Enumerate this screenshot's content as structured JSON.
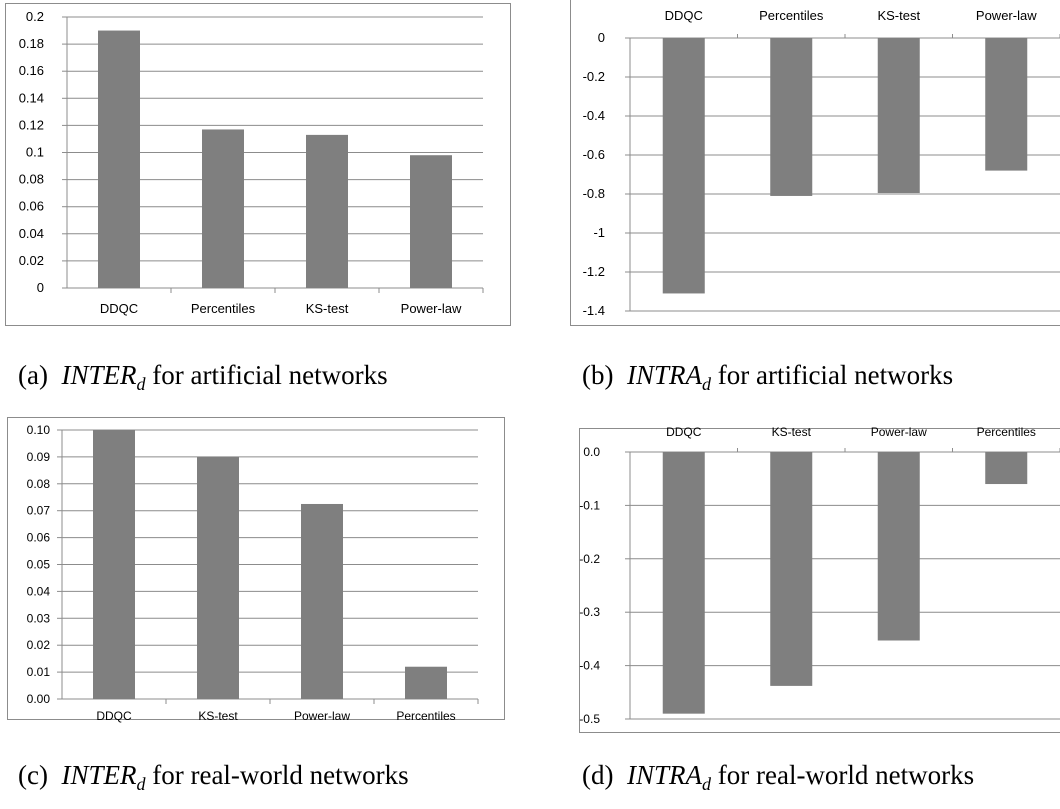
{
  "colors": {
    "bar": "#7f7f7f",
    "grid": "#8c8c8c",
    "axis": "#8c8c8c",
    "text": "#000000"
  },
  "panels": [
    {
      "caption": {
        "label": "(a)",
        "symbol": "INTER",
        "subscript": "d",
        "text": "for artificial networks"
      },
      "chart_data": {
        "type": "bar",
        "categories": [
          "DDQC",
          "Percentiles",
          "KS-test",
          "Power-law"
        ],
        "values": [
          0.19,
          0.117,
          0.113,
          0.098
        ],
        "yticks": [
          "0",
          "0.02",
          "0.04",
          "0.06",
          "0.08",
          "0.1",
          "0.12",
          "0.14",
          "0.16",
          "0.18",
          "0.2"
        ],
        "ylim": [
          0,
          0.2
        ],
        "category_axis": "bottom",
        "grid": true
      }
    },
    {
      "caption": {
        "label": "(b)",
        "symbol": "INTRA",
        "subscript": "d",
        "text": "for artificial networks"
      },
      "chart_data": {
        "type": "bar",
        "categories": [
          "DDQC",
          "Percentiles",
          "KS-test",
          "Power-law"
        ],
        "values": [
          -1.31,
          -0.81,
          -0.795,
          -0.68
        ],
        "yticks": [
          "0",
          "-0.2",
          "-0.4",
          "-0.6",
          "-0.8",
          "-1",
          "-1.2",
          "-1.4"
        ],
        "ylim": [
          -1.4,
          0
        ],
        "category_axis": "top",
        "grid": true
      }
    },
    {
      "caption": {
        "label": "(c)",
        "symbol": "INTER",
        "subscript": "d",
        "text": "for real-world networks"
      },
      "chart_data": {
        "type": "bar",
        "categories": [
          "DDQC",
          "KS-test",
          "Power-law",
          "Percentiles"
        ],
        "values": [
          0.1,
          0.09,
          0.0725,
          0.012
        ],
        "yticks": [
          "0.00",
          "0.01",
          "0.02",
          "0.03",
          "0.04",
          "0.05",
          "0.06",
          "0.07",
          "0.08",
          "0.09",
          "0.10"
        ],
        "ylim": [
          0,
          0.1
        ],
        "category_axis": "bottom",
        "grid": true
      }
    },
    {
      "caption": {
        "label": "(d)",
        "symbol": "INTRA",
        "subscript": "d",
        "text": "for real-world networks"
      },
      "chart_data": {
        "type": "bar",
        "categories": [
          "DDQC",
          "KS-test",
          "Power-law",
          "Percentiles"
        ],
        "values": [
          -0.49,
          -0.438,
          -0.353,
          -0.06
        ],
        "yticks": [
          "0.0",
          "-0.1",
          "-0.2",
          "-0.3",
          "-0.4",
          "-0.5"
        ],
        "ylim": [
          -0.5,
          0
        ],
        "category_axis": "top",
        "grid": true
      }
    }
  ]
}
